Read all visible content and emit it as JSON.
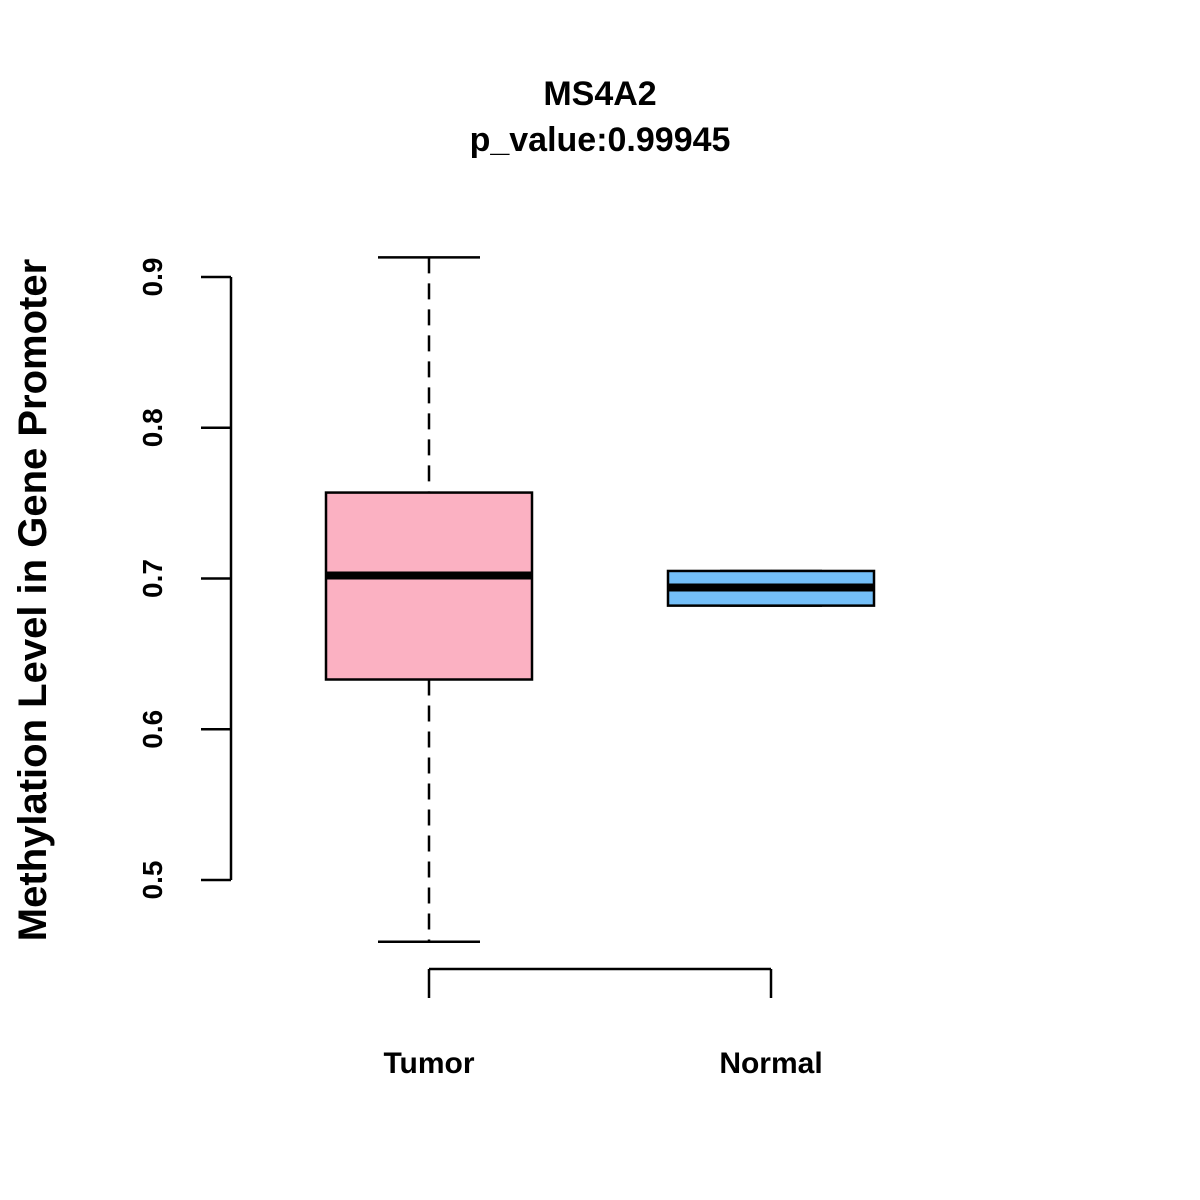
{
  "chart_data": {
    "type": "box",
    "title": "MS4A2",
    "subtitle": "p_value:0.99945",
    "xlabel": "",
    "ylabel": "Methylation Level in Gene Promoter",
    "ylim": [
      0.5,
      0.9
    ],
    "yticks": [
      "0.5",
      "0.6",
      "0.7",
      "0.8",
      "0.9"
    ],
    "grid": false,
    "categories": [
      "Tumor",
      "Normal"
    ],
    "boxes": [
      {
        "name": "Tumor",
        "whisker_low": 0.459,
        "q1": 0.633,
        "median": 0.702,
        "q3": 0.757,
        "whisker_high": 0.913,
        "color": "#FBB1C2"
      },
      {
        "name": "Normal",
        "whisker_low": 0.682,
        "q1": 0.682,
        "median": 0.694,
        "q3": 0.705,
        "whisker_high": 0.705,
        "color": "#74BFF8"
      }
    ]
  }
}
